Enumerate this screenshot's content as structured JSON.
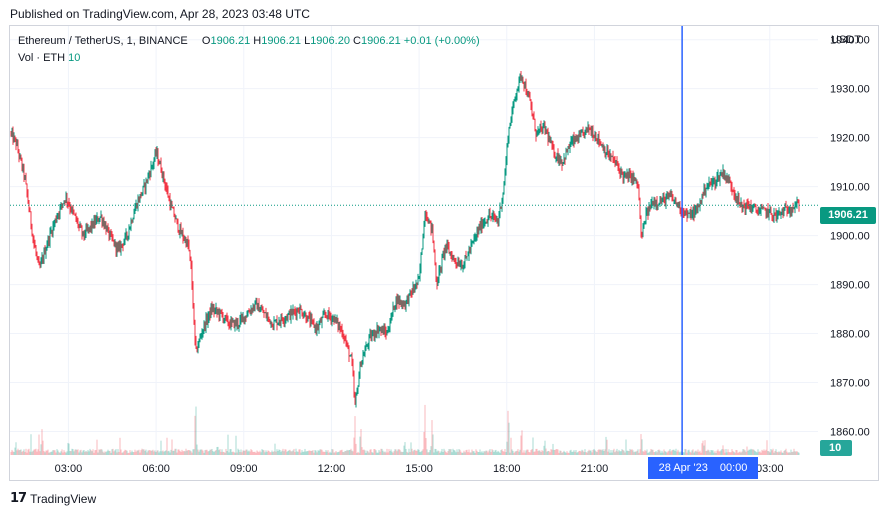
{
  "header": {
    "published": "Published on TradingView.com, Apr 28, 2023 03:48 UTC"
  },
  "legend": {
    "symbol": "Ethereum / TetherUS, 1, BINANCE",
    "open_label": "O",
    "open": "1906.21",
    "high_label": "H",
    "high": "1906.21",
    "low_label": "L",
    "low": "1906.20",
    "close_label": "C",
    "close": "1906.21",
    "change": "+0.01 (+0.00%)",
    "volume_label": "Vol · ETH",
    "volume": "10"
  },
  "price_scale": {
    "currency": "USDT",
    "last_price": "1906.21",
    "volume_badge": "10"
  },
  "crosshair": {
    "date": "28 Apr '23",
    "time": "00:00"
  },
  "branding": {
    "logo_mark": "17",
    "logo_text": "TradingView"
  },
  "colors": {
    "up": "#089981",
    "down": "#f23645",
    "crosshair": "#2962ff",
    "grid": "#f0f3fa",
    "last_price_line": "#089981"
  },
  "chart_data": {
    "type": "candlestick",
    "symbol": "Ethereum / TetherUS",
    "interval": "1",
    "exchange": "BINANCE",
    "price_ticks": [
      1940,
      1930,
      1920,
      1910,
      1900,
      1890,
      1880,
      1870,
      1860
    ],
    "price_tick_labels": [
      "1940.00",
      "1930.00",
      "1920.00",
      "1910.00",
      "1900.00",
      "1890.00",
      "1880.00",
      "1870.00",
      "1860.00"
    ],
    "ylim": [
      1855.2,
      1942.8
    ],
    "time_ticks": [
      3,
      6,
      9,
      12,
      15,
      18,
      21,
      27
    ],
    "time_tick_labels": [
      "03:00",
      "06:00",
      "09:00",
      "12:00",
      "15:00",
      "18:00",
      "21:00",
      "03:00"
    ],
    "xlim": [
      1.0,
      28.65
    ],
    "crosshair_hour": 24,
    "last_price": 1906.21,
    "price_path": [
      [
        1.0,
        1921
      ],
      [
        1.2,
        1919
      ],
      [
        1.5,
        1912
      ],
      [
        1.8,
        1899
      ],
      [
        2.0,
        1893
      ],
      [
        2.3,
        1899
      ],
      [
        2.6,
        1904
      ],
      [
        2.9,
        1908
      ],
      [
        3.2,
        1904
      ],
      [
        3.5,
        1900
      ],
      [
        3.8,
        1902
      ],
      [
        4.1,
        1904
      ],
      [
        4.4,
        1900
      ],
      [
        4.7,
        1897
      ],
      [
        5.0,
        1900
      ],
      [
        5.3,
        1906
      ],
      [
        5.6,
        1910
      ],
      [
        5.9,
        1915
      ],
      [
        6.0,
        1917
      ],
      [
        6.2,
        1913
      ],
      [
        6.5,
        1906
      ],
      [
        6.8,
        1901
      ],
      [
        7.1,
        1898
      ],
      [
        7.2,
        1893
      ],
      [
        7.35,
        1876
      ],
      [
        7.6,
        1881
      ],
      [
        7.9,
        1885
      ],
      [
        8.2,
        1884
      ],
      [
        8.5,
        1882
      ],
      [
        8.8,
        1882
      ],
      [
        9.1,
        1884
      ],
      [
        9.4,
        1886
      ],
      [
        9.7,
        1884
      ],
      [
        10.0,
        1882
      ],
      [
        10.3,
        1883
      ],
      [
        10.6,
        1884
      ],
      [
        10.9,
        1885
      ],
      [
        11.2,
        1883
      ],
      [
        11.5,
        1881
      ],
      [
        11.8,
        1884
      ],
      [
        12.1,
        1883
      ],
      [
        12.4,
        1880
      ],
      [
        12.7,
        1874
      ],
      [
        12.8,
        1865
      ],
      [
        13.0,
        1874
      ],
      [
        13.3,
        1879
      ],
      [
        13.6,
        1881
      ],
      [
        13.9,
        1880
      ],
      [
        14.2,
        1887
      ],
      [
        14.5,
        1886
      ],
      [
        14.8,
        1889
      ],
      [
        15.0,
        1891
      ],
      [
        15.2,
        1905
      ],
      [
        15.45,
        1901
      ],
      [
        15.6,
        1890
      ],
      [
        15.9,
        1898
      ],
      [
        16.2,
        1895
      ],
      [
        16.5,
        1894
      ],
      [
        16.8,
        1898
      ],
      [
        17.1,
        1902
      ],
      [
        17.4,
        1904
      ],
      [
        17.7,
        1903
      ],
      [
        17.9,
        1910
      ],
      [
        18.05,
        1921
      ],
      [
        18.3,
        1929
      ],
      [
        18.5,
        1933
      ],
      [
        18.8,
        1927
      ],
      [
        19.0,
        1921
      ],
      [
        19.3,
        1922
      ],
      [
        19.6,
        1917
      ],
      [
        19.9,
        1915
      ],
      [
        20.2,
        1919
      ],
      [
        20.5,
        1920
      ],
      [
        20.8,
        1922
      ],
      [
        21.1,
        1920
      ],
      [
        21.4,
        1917
      ],
      [
        21.7,
        1915
      ],
      [
        22.0,
        1912
      ],
      [
        22.3,
        1912
      ],
      [
        22.5,
        1910
      ],
      [
        22.6,
        1899
      ],
      [
        22.75,
        1904
      ],
      [
        23.0,
        1907
      ],
      [
        23.3,
        1907
      ],
      [
        23.6,
        1908
      ],
      [
        23.9,
        1906
      ],
      [
        24.2,
        1904
      ],
      [
        24.5,
        1905
      ],
      [
        24.8,
        1910
      ],
      [
        25.1,
        1911
      ],
      [
        25.4,
        1913
      ],
      [
        25.7,
        1910
      ],
      [
        26.0,
        1906
      ],
      [
        26.3,
        1906
      ],
      [
        26.6,
        1905
      ],
      [
        26.9,
        1905
      ],
      [
        27.2,
        1904
      ],
      [
        27.5,
        1905
      ],
      [
        27.8,
        1906
      ],
      [
        28.0,
        1906.21
      ]
    ],
    "volume_spikes": [
      [
        1.2,
        0.3
      ],
      [
        2.1,
        0.62
      ],
      [
        3.0,
        0.25
      ],
      [
        7.35,
        0.95
      ],
      [
        8.1,
        0.2
      ],
      [
        12.8,
        0.75
      ],
      [
        13.0,
        0.55
      ],
      [
        14.5,
        0.28
      ],
      [
        15.2,
        0.85
      ],
      [
        15.45,
        0.6
      ],
      [
        18.05,
        0.9
      ],
      [
        18.5,
        0.55
      ],
      [
        19.3,
        0.35
      ],
      [
        22.6,
        0.42
      ],
      [
        24.7,
        0.3
      ],
      [
        25.4,
        0.22
      ]
    ]
  }
}
